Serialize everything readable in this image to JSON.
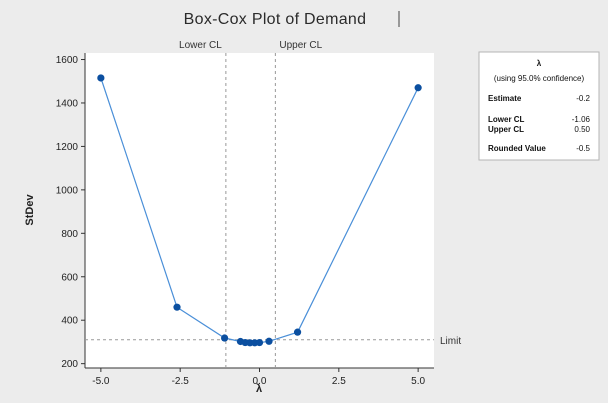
{
  "chart_data": {
    "type": "line",
    "title": "Box-Cox Plot of Demand",
    "xlabel": "λ",
    "ylabel": "StDev",
    "xlim": [
      -5.5,
      5.5
    ],
    "ylim": [
      180,
      1630
    ],
    "x_ticks": [
      -5.0,
      -2.5,
      0.0,
      2.5,
      5.0
    ],
    "x_tick_labels": [
      "-5.0",
      "-2.5",
      "0.0",
      "2.5",
      "5.0"
    ],
    "y_ticks": [
      200,
      400,
      600,
      800,
      1000,
      1200,
      1400,
      1600
    ],
    "y_tick_labels": [
      "200",
      "400",
      "600",
      "800",
      "1000",
      "1200",
      "1400",
      "1600"
    ],
    "series": [
      {
        "x": [
          -5.0,
          -2.6,
          -1.1,
          -0.6,
          -0.45,
          -0.3,
          -0.15,
          0.0,
          0.3,
          1.2,
          5.0
        ],
        "y": [
          1515,
          460,
          318,
          302,
          297,
          296,
          296,
          297,
          303,
          345,
          1470
        ],
        "color": "#0b4fa0",
        "line_color": "#4a8fd8"
      }
    ],
    "reference_lines": {
      "limit": {
        "y": 310,
        "label": "Limit"
      },
      "lower_cl": {
        "x": -1.06,
        "label": "Lower CL"
      },
      "upper_cl": {
        "x": 0.5,
        "label": "Upper CL"
      }
    },
    "grid": false,
    "legend": "none",
    "info_box": {
      "header": "λ",
      "subheader": "(using 95.0% confidence)",
      "rows": [
        {
          "label": "Estimate",
          "value": "-0.2"
        },
        {
          "label": "Lower CL",
          "value": "-1.06"
        },
        {
          "label": "Upper CL",
          "value": "0.50"
        },
        {
          "label": "Rounded Value",
          "value": "-0.5"
        }
      ]
    }
  },
  "colors": {
    "background": "#ececec",
    "plot_area": "#ffffff",
    "point": "#0b4fa0",
    "line": "#4a8fd8",
    "reference": "#999999"
  }
}
